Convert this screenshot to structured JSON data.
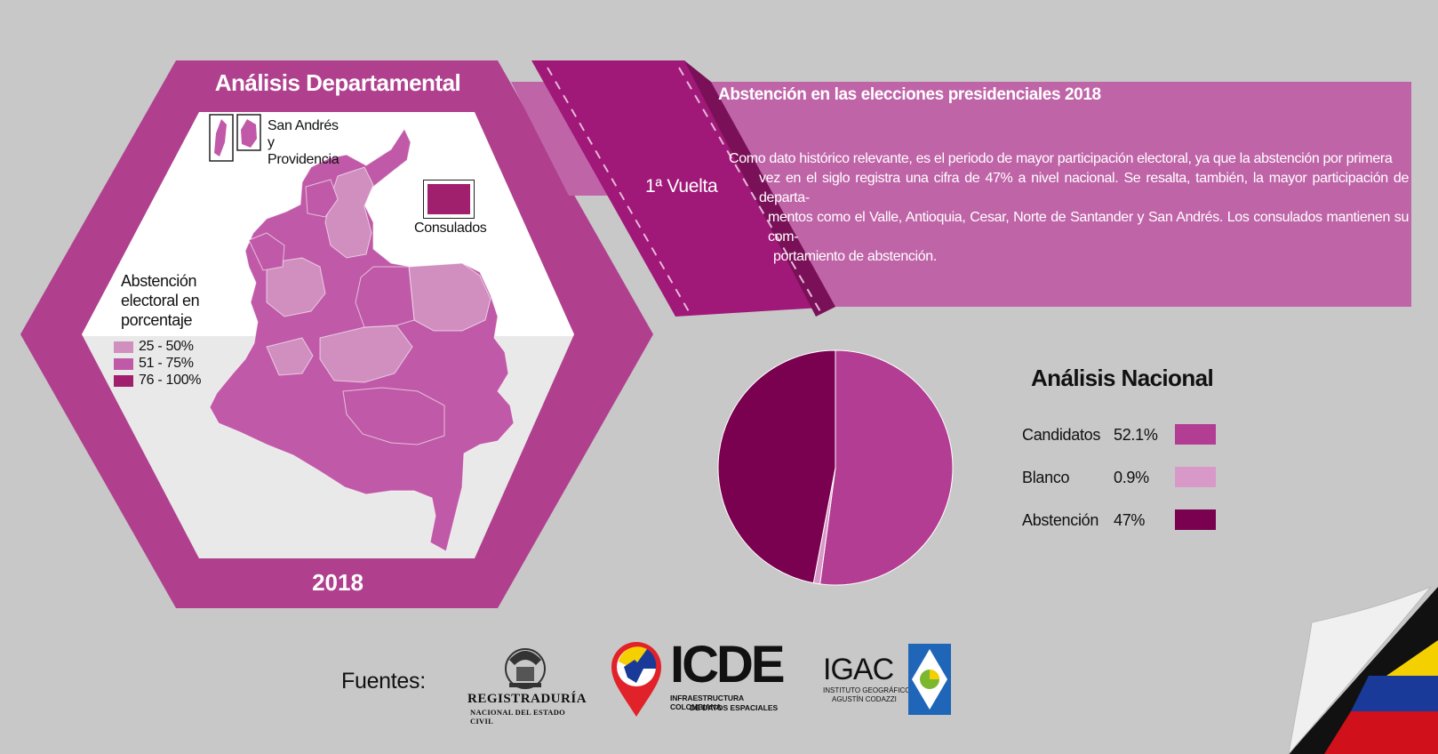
{
  "departamental": {
    "title": "Análisis Departamental",
    "year": "2018",
    "san_andres_label": "San Andrés y Providencia",
    "consulados_label": "Consulados",
    "legend_title": "Abstención electoral en porcentaje",
    "legend": [
      {
        "label": "25 - 50%",
        "color": "#d18fc0"
      },
      {
        "label": "51 - 75%",
        "color": "#c05aa8"
      },
      {
        "label": "76 - 100%",
        "color": "#a0206e"
      }
    ]
  },
  "banner": {
    "title": "Abstención en las elecciones presidenciales 2018",
    "round": "1ª Vuelta",
    "text_lines": [
      "Como dato histórico relevante,  es el periodo de mayor participación electoral, ya que la abstención por primera",
      "vez en el siglo registra una cifra de 47% a nivel nacional. Se resalta, también, la mayor participación de departa-",
      "mentos como el Valle, Antioquia, Cesar, Norte de Santander y San Andrés. Los consulados mantienen su com-",
      "portamiento de abstención."
    ]
  },
  "nacional": {
    "title": "Análisis Nacional",
    "rows": [
      {
        "label": "Candidatos",
        "pct": "52.1%",
        "color": "#b23d93"
      },
      {
        "label": "Blanco",
        "pct": "0.9%",
        "color": "#d898c8"
      },
      {
        "label": "Abstención",
        "pct": "47%",
        "color": "#7a0050"
      }
    ]
  },
  "chart_data": {
    "type": "pie",
    "categories": [
      "Candidatos",
      "Blanco",
      "Abstención"
    ],
    "values": [
      52.1,
      0.9,
      47
    ],
    "colors": [
      "#b23d93",
      "#d898c8",
      "#7a0050"
    ]
  },
  "footer": {
    "fuentes": "Fuentes:",
    "registraduria_line1": "REGISTRADURÍA",
    "registraduria_line2": "NACIONAL DEL ESTADO CIVIL",
    "icde_name": "ICDE",
    "icde_line1": "INFRAESTRUCTURA COLOMBIANA",
    "icde_line2": "DE DATOS ESPACIALES",
    "igac_name": "IGAC",
    "igac_line1": "INSTITUTO GEOGRÁFICO",
    "igac_line2": "AGUSTÍN CODAZZI"
  }
}
